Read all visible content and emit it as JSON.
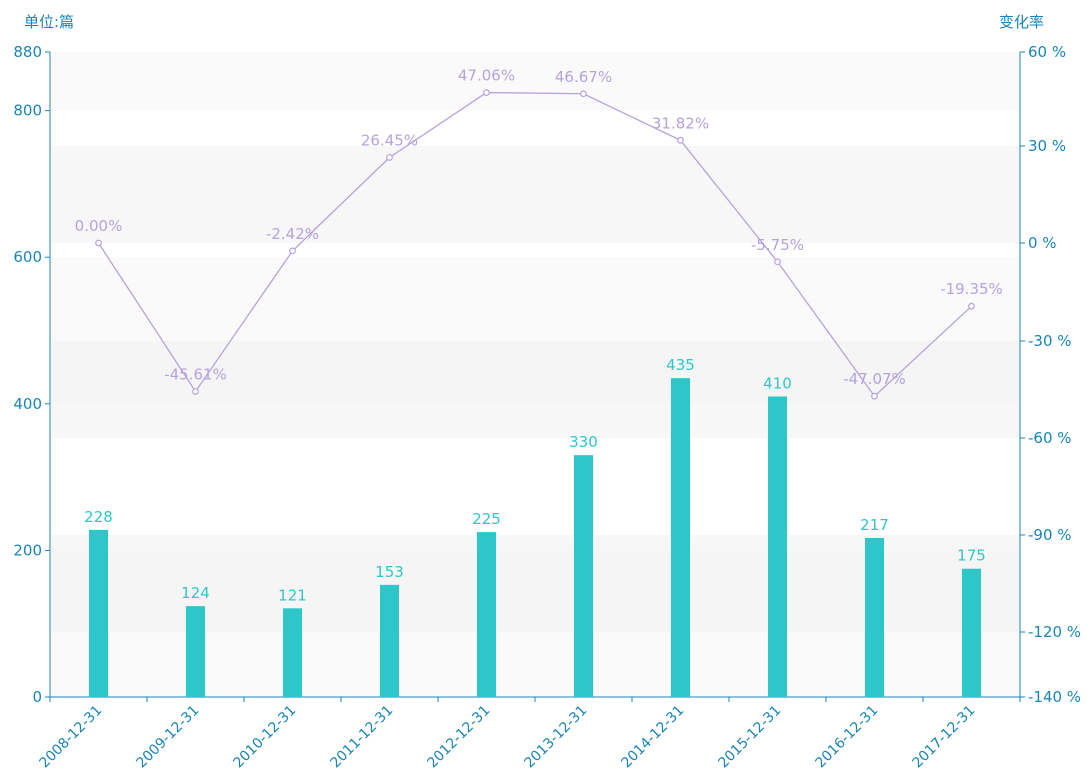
{
  "chart_data": {
    "type": "bar",
    "categories": [
      "2008-12-31",
      "2009-12-31",
      "2010-12-31",
      "2011-12-31",
      "2012-12-31",
      "2013-12-31",
      "2014-12-31",
      "2015-12-31",
      "2016-12-31",
      "2017-12-31"
    ],
    "series": [
      {
        "type": "bar",
        "axis": "left",
        "values": [
          228,
          124,
          121,
          153,
          225,
          330,
          435,
          410,
          217,
          175
        ],
        "labels": [
          "228",
          "124",
          "121",
          "153",
          "225",
          "330",
          "435",
          "410",
          "217",
          "175"
        ],
        "color": "#2ec7c9"
      },
      {
        "type": "line",
        "axis": "right",
        "values": [
          0.0,
          -45.61,
          -2.42,
          26.45,
          47.06,
          46.67,
          31.82,
          -5.75,
          -47.07,
          -19.35
        ],
        "labels": [
          "0.00%",
          "-45.61%",
          "-2.42%",
          "26.45%",
          "47.06%",
          "46.67%",
          "31.82%",
          "-5.75%",
          "-47.07%",
          "-19.35%"
        ],
        "color": "#b6a2de"
      }
    ],
    "y_left": {
      "unit_label": "单位:篇",
      "ylim": [
        0,
        880
      ],
      "ticks": [
        0,
        200,
        400,
        600,
        800,
        880
      ],
      "tick_labels": [
        "0",
        "200",
        "400",
        "600",
        "800",
        "880"
      ]
    },
    "y_right": {
      "unit_label": "变化率",
      "ticks": [
        -140,
        -120,
        -90,
        -60,
        -30,
        0,
        30,
        60
      ],
      "tick_labels": [
        "-140 %",
        "-120 %",
        "-90 %",
        "-60 %",
        "-30 %",
        "0 %",
        "30 %",
        "60 %"
      ]
    },
    "axis_color": "#1a86b8",
    "split_area_colors": [
      "#ffffff",
      "#f7f7f7"
    ]
  }
}
